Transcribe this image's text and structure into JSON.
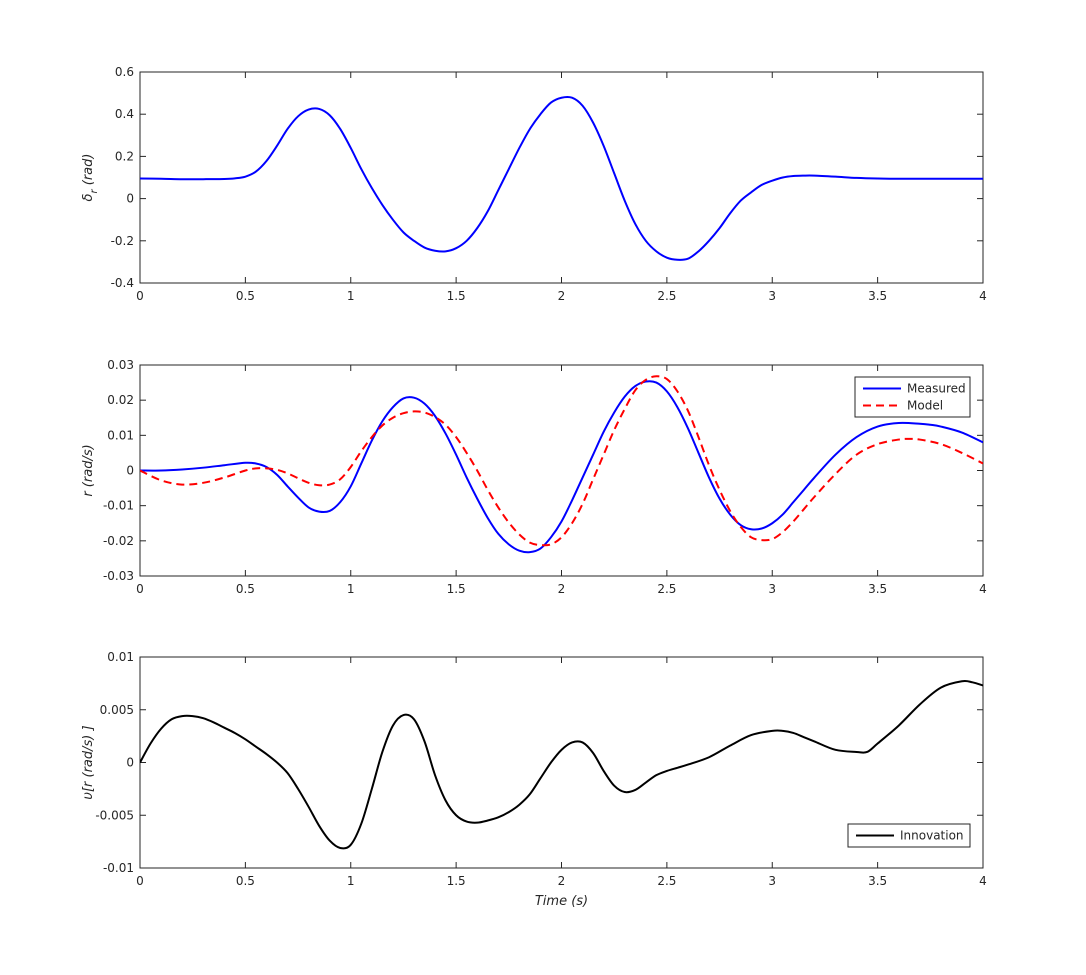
{
  "chart_data": [
    {
      "type": "line",
      "ylabel": "δr (rad)",
      "ylabel_main": "δ",
      "ylabel_sub": "r",
      "ylabel_rest": " (rad)",
      "xlabel": "",
      "xlim": [
        0,
        4
      ],
      "ylim": [
        -0.4,
        0.6
      ],
      "xticks": [
        "0",
        "0.5",
        "1",
        "1.5",
        "2",
        "2.5",
        "3",
        "3.5",
        "4"
      ],
      "yticks": [
        "-0.4",
        "-0.2",
        "0",
        "0.2",
        "0.4",
        "0.6"
      ],
      "grid": true,
      "legend": null,
      "series": [
        {
          "color": "#0000ff",
          "dash": "solid",
          "x": [
            0,
            0.1,
            0.2,
            0.3,
            0.4,
            0.45,
            0.5,
            0.55,
            0.6,
            0.65,
            0.7,
            0.75,
            0.8,
            0.85,
            0.9,
            0.95,
            1.0,
            1.05,
            1.1,
            1.15,
            1.2,
            1.25,
            1.3,
            1.35,
            1.4,
            1.45,
            1.5,
            1.55,
            1.6,
            1.65,
            1.7,
            1.75,
            1.8,
            1.85,
            1.9,
            1.95,
            2.0,
            2.05,
            2.1,
            2.15,
            2.2,
            2.25,
            2.3,
            2.35,
            2.4,
            2.45,
            2.5,
            2.55,
            2.6,
            2.65,
            2.7,
            2.75,
            2.8,
            2.85,
            2.9,
            2.95,
            3.0,
            3.05,
            3.1,
            3.15,
            3.2,
            3.3,
            3.4,
            3.5,
            3.6,
            3.8,
            4.0
          ],
          "y": [
            0.095,
            0.094,
            0.092,
            0.092,
            0.093,
            0.096,
            0.104,
            0.128,
            0.178,
            0.25,
            0.33,
            0.39,
            0.422,
            0.425,
            0.395,
            0.33,
            0.24,
            0.14,
            0.05,
            -0.03,
            -0.1,
            -0.16,
            -0.2,
            -0.232,
            -0.247,
            -0.25,
            -0.235,
            -0.2,
            -0.14,
            -0.06,
            0.04,
            0.14,
            0.24,
            0.33,
            0.4,
            0.455,
            0.478,
            0.478,
            0.44,
            0.36,
            0.25,
            0.12,
            -0.01,
            -0.12,
            -0.2,
            -0.25,
            -0.28,
            -0.29,
            -0.285,
            -0.25,
            -0.2,
            -0.14,
            -0.07,
            -0.01,
            0.03,
            0.065,
            0.085,
            0.1,
            0.107,
            0.109,
            0.109,
            0.104,
            0.098,
            0.095,
            0.094,
            0.094,
            0.094
          ]
        }
      ]
    },
    {
      "type": "line",
      "ylabel": "r (rad/s)",
      "xlabel": "",
      "xlim": [
        0,
        4
      ],
      "ylim": [
        -0.03,
        0.03
      ],
      "xticks": [
        "0",
        "0.5",
        "1",
        "1.5",
        "2",
        "2.5",
        "3",
        "3.5",
        "4"
      ],
      "yticks": [
        "-0.03",
        "-0.02",
        "-0.01",
        "0",
        "0.01",
        "0.02",
        "0.03"
      ],
      "grid": true,
      "legend": "top-right",
      "series": [
        {
          "name": "Measured",
          "color": "#0000ff",
          "dash": "solid",
          "x": [
            0,
            0.1,
            0.2,
            0.3,
            0.4,
            0.5,
            0.55,
            0.6,
            0.65,
            0.7,
            0.75,
            0.8,
            0.85,
            0.9,
            0.95,
            1.0,
            1.05,
            1.1,
            1.15,
            1.2,
            1.25,
            1.3,
            1.35,
            1.4,
            1.45,
            1.5,
            1.55,
            1.6,
            1.65,
            1.7,
            1.75,
            1.8,
            1.85,
            1.9,
            1.95,
            2.0,
            2.05,
            2.1,
            2.15,
            2.2,
            2.25,
            2.3,
            2.35,
            2.4,
            2.45,
            2.5,
            2.55,
            2.6,
            2.65,
            2.7,
            2.75,
            2.8,
            2.85,
            2.9,
            2.95,
            3.0,
            3.05,
            3.1,
            3.15,
            3.2,
            3.3,
            3.4,
            3.5,
            3.6,
            3.7,
            3.75,
            3.8,
            3.9,
            4.0
          ],
          "y": [
            0.0,
            0.0,
            0.0003,
            0.0008,
            0.0015,
            0.0022,
            0.002,
            0.001,
            -0.0012,
            -0.0045,
            -0.0077,
            -0.0105,
            -0.0117,
            -0.0115,
            -0.009,
            -0.0045,
            0.002,
            0.0085,
            0.014,
            0.018,
            0.0205,
            0.0207,
            0.019,
            0.0155,
            0.0105,
            0.0045,
            -0.002,
            -0.008,
            -0.0135,
            -0.018,
            -0.021,
            -0.0228,
            -0.0232,
            -0.0222,
            -0.019,
            -0.0145,
            -0.0085,
            -0.002,
            0.0045,
            0.011,
            0.0165,
            0.021,
            0.024,
            0.0253,
            0.025,
            0.0225,
            0.018,
            0.012,
            0.005,
            -0.002,
            -0.008,
            -0.0125,
            -0.0155,
            -0.0167,
            -0.0165,
            -0.015,
            -0.0125,
            -0.009,
            -0.0055,
            -0.002,
            0.0045,
            0.0095,
            0.0125,
            0.0135,
            0.0133,
            0.013,
            0.0125,
            0.0108,
            0.008
          ]
        },
        {
          "name": "Model",
          "color": "#ff0000",
          "dash": "dashed",
          "x": [
            0,
            0.1,
            0.2,
            0.3,
            0.4,
            0.5,
            0.55,
            0.6,
            0.65,
            0.7,
            0.75,
            0.8,
            0.85,
            0.9,
            0.95,
            1.0,
            1.05,
            1.1,
            1.15,
            1.2,
            1.25,
            1.3,
            1.35,
            1.4,
            1.45,
            1.5,
            1.55,
            1.6,
            1.65,
            1.7,
            1.75,
            1.8,
            1.85,
            1.9,
            1.95,
            2.0,
            2.05,
            2.1,
            2.15,
            2.2,
            2.25,
            2.3,
            2.35,
            2.4,
            2.45,
            2.5,
            2.55,
            2.6,
            2.65,
            2.7,
            2.75,
            2.8,
            2.85,
            2.9,
            2.95,
            3.0,
            3.05,
            3.1,
            3.15,
            3.2,
            3.3,
            3.4,
            3.5,
            3.6,
            3.65,
            3.7,
            3.8,
            3.9,
            4.0
          ],
          "y": [
            0.0,
            -0.0028,
            -0.004,
            -0.0035,
            -0.002,
            0.0,
            0.0006,
            0.0006,
            0.0002,
            -0.0008,
            -0.0022,
            -0.0035,
            -0.0042,
            -0.004,
            -0.0025,
            0.001,
            0.0055,
            0.0095,
            0.0128,
            0.015,
            0.0163,
            0.0168,
            0.0165,
            0.0152,
            0.013,
            0.0095,
            0.005,
            0.0,
            -0.0055,
            -0.0105,
            -0.0148,
            -0.0182,
            -0.0205,
            -0.0212,
            -0.021,
            -0.019,
            -0.015,
            -0.0095,
            -0.0025,
            0.0045,
            0.0115,
            0.0175,
            0.0228,
            0.0258,
            0.0268,
            0.026,
            0.0225,
            0.017,
            0.0095,
            0.0015,
            -0.0055,
            -0.0115,
            -0.016,
            -0.019,
            -0.0198,
            -0.0195,
            -0.0175,
            -0.0145,
            -0.011,
            -0.0075,
            -0.001,
            0.0045,
            0.0075,
            0.0088,
            0.009,
            0.0088,
            0.0075,
            0.005,
            0.002
          ]
        }
      ]
    },
    {
      "type": "line",
      "ylabel": "υ[r (rad/s) ]",
      "xlabel": "Time (s)",
      "xlim": [
        0,
        4
      ],
      "ylim": [
        -0.01,
        0.01
      ],
      "xticks": [
        "0",
        "0.5",
        "1",
        "1.5",
        "2",
        "2.5",
        "3",
        "3.5",
        "4"
      ],
      "yticks": [
        "-0.01",
        "-0.005",
        "0",
        "0.005",
        "0.01"
      ],
      "grid": true,
      "legend": "bottom-right",
      "series": [
        {
          "name": "Innovation",
          "color": "#000000",
          "dash": "solid",
          "x": [
            0,
            0.05,
            0.1,
            0.15,
            0.2,
            0.25,
            0.3,
            0.35,
            0.4,
            0.45,
            0.5,
            0.55,
            0.6,
            0.65,
            0.7,
            0.75,
            0.8,
            0.85,
            0.9,
            0.95,
            1.0,
            1.05,
            1.1,
            1.15,
            1.2,
            1.25,
            1.3,
            1.35,
            1.4,
            1.45,
            1.5,
            1.55,
            1.6,
            1.65,
            1.7,
            1.75,
            1.8,
            1.85,
            1.9,
            1.95,
            2.0,
            2.05,
            2.1,
            2.15,
            2.2,
            2.25,
            2.3,
            2.35,
            2.4,
            2.45,
            2.5,
            2.55,
            2.6,
            2.7,
            2.8,
            2.9,
            3.0,
            3.05,
            3.1,
            3.15,
            3.2,
            3.3,
            3.4,
            3.45,
            3.5,
            3.6,
            3.7,
            3.8,
            3.9,
            3.95,
            4.0
          ],
          "y": [
            0.0,
            0.0018,
            0.0032,
            0.0041,
            0.0044,
            0.0044,
            0.0042,
            0.0038,
            0.0033,
            0.0028,
            0.0022,
            0.0015,
            0.0008,
            0.0,
            -0.001,
            -0.0025,
            -0.0042,
            -0.006,
            -0.0074,
            -0.0081,
            -0.0078,
            -0.0058,
            -0.0025,
            0.001,
            0.0035,
            0.0045,
            0.0041,
            0.002,
            -0.0012,
            -0.0036,
            -0.005,
            -0.0056,
            -0.0057,
            -0.0055,
            -0.0052,
            -0.0047,
            -0.004,
            -0.003,
            -0.0015,
            0.0,
            0.0012,
            0.0019,
            0.0019,
            0.0009,
            -0.0008,
            -0.0022,
            -0.0028,
            -0.0026,
            -0.0019,
            -0.0012,
            -0.0008,
            -0.0005,
            -0.0002,
            0.0005,
            0.0016,
            0.0026,
            0.003,
            0.003,
            0.0028,
            0.0024,
            0.002,
            0.0012,
            0.001,
            0.001,
            0.0018,
            0.0035,
            0.0055,
            0.0071,
            0.0077,
            0.0076,
            0.0073
          ]
        }
      ]
    }
  ]
}
